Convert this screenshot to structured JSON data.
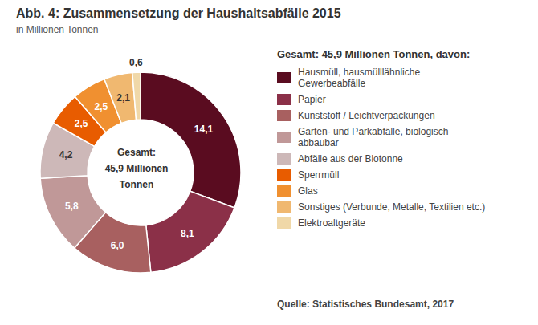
{
  "chart_data": {
    "type": "pie",
    "title": "Abb. 4: Zusammensetzung der Haushaltsabfälle 2015",
    "subtitle": "in Millionen Tonnen",
    "categories": [
      "Hausmüll, hausmülllähnliche\nGewerbeabfälle",
      "Papier",
      "Kunststoff / Leichtverpackungen",
      "Garten- und Parkabfälle, biologisch\nabbaubar",
      "Abfälle aus der Biotonne",
      "Sperrmüll",
      "Glas",
      "Sonstiges (Verbunde, Metalle, Textilien etc.)",
      "Elektroaltgeräte"
    ],
    "values": [
      14.1,
      8.1,
      6.0,
      5.8,
      4.2,
      2.5,
      2.5,
      2.1,
      0.6
    ],
    "value_labels": [
      "14,1",
      "8,1",
      "6,0",
      "5,8",
      "4,2",
      "2,5",
      "2,5",
      "2,1",
      "0,6"
    ],
    "colors": [
      "#5a0c20",
      "#8b3048",
      "#a86060",
      "#c09898",
      "#cdb8b8",
      "#e85c00",
      "#f09030",
      "#f0b870",
      "#f0d8a8"
    ],
    "data_labels": true,
    "legend": "right",
    "annotations": [
      "Gesamt:",
      "45,9 Millionen",
      "Tonnen",
      "Gesamt: 45,9 Millionen Tonnen, davon:",
      "Quelle: Statistisches Bundesamt, 2017"
    ]
  }
}
